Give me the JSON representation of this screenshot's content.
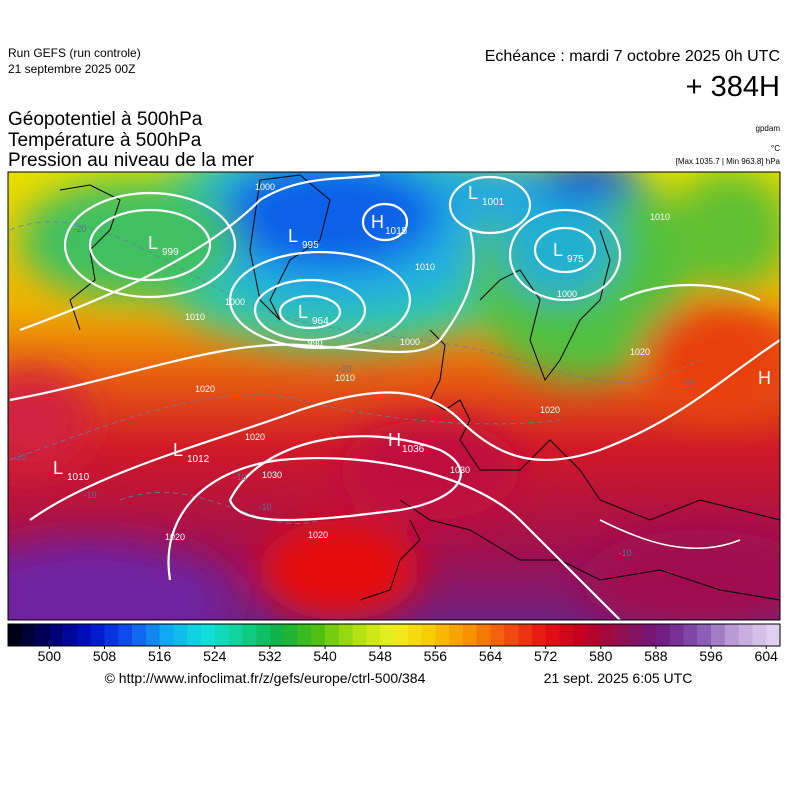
{
  "header": {
    "run": "Run GEFS (run controle)",
    "date": "21 septembre 2025 00Z",
    "forecast": "Echéance : mardi 7 octobre 2025 0h UTC",
    "lead": "+ 384H"
  },
  "titles": [
    "Géopotentiel à 500hPa",
    "Température à 500hPa",
    "Pression au niveau de la mer"
  ],
  "units": [
    "gpdam",
    "°C",
    "[Max 1035.7 | Min 963.8] hPa"
  ],
  "map": {
    "centers": [
      {
        "letter": "L",
        "value": "1001"
      },
      {
        "letter": "L",
        "value": "999"
      },
      {
        "letter": "L",
        "value": "995"
      },
      {
        "letter": "H",
        "value": "1015"
      },
      {
        "letter": "L",
        "value": "975"
      },
      {
        "letter": "L",
        "value": "964"
      },
      {
        "letter": "L",
        "value": "1012"
      },
      {
        "letter": "L",
        "value": "1010"
      },
      {
        "letter": "H",
        "value": "1036"
      },
      {
        "letter": "H",
        "value": ""
      }
    ],
    "isobar_labels": [
      "1000",
      "1000",
      "1010",
      "990",
      "1010",
      "1020",
      "1020",
      "1030",
      "1030",
      "1020",
      "1020",
      "1000",
      "1010",
      "1000",
      "1010",
      "1020",
      "1020"
    ],
    "temperature_labels": [
      "-20",
      "-20",
      "-10",
      "-10",
      "-20",
      "-10",
      "-20",
      "-10"
    ]
  },
  "colorbar": {
    "xlim": [
      494,
      606
    ],
    "ticks": [
      500,
      508,
      516,
      524,
      532,
      540,
      548,
      556,
      564,
      572,
      580,
      588,
      596,
      604
    ]
  },
  "footer": {
    "source": "© http://www.infoclimat.fr/z/gefs/europe/ctrl-500/384",
    "time": "21 sept. 2025  6:05 UTC"
  }
}
